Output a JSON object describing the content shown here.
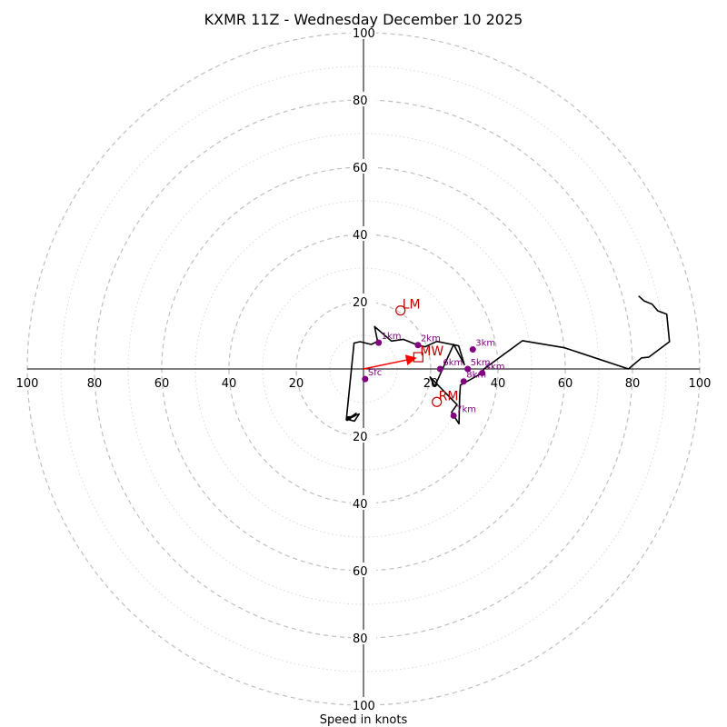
{
  "chart_data": {
    "type": "hodograph",
    "title": "KXMR 11Z - Wednesday December 10 2025",
    "xlabel": "Speed in knots",
    "max_speed": 100,
    "ring_step": 10,
    "ring_labels": [
      20,
      40,
      60,
      80,
      100
    ],
    "colors": {
      "ring_major": "#bfbfbf",
      "ring_minor": "#d9d9d9",
      "axis": "#000000",
      "trace": "#000000",
      "height_marker": "#800080",
      "motion": "#c00000",
      "mean_wind_vector": "#ff0000"
    },
    "trace": [
      [
        81.8,
        21.7
      ],
      [
        83.5,
        20.2
      ],
      [
        85.8,
        19.3
      ],
      [
        87.5,
        17.3
      ],
      [
        90.2,
        16.3
      ],
      [
        91.0,
        8.1
      ],
      [
        84.8,
        3.5
      ],
      [
        82.7,
        3.3
      ],
      [
        78.8,
        0.0
      ],
      [
        59.8,
        6.3
      ],
      [
        47.3,
        8.4
      ],
      [
        35.8,
        0.0
      ],
      [
        35.3,
        -1.2
      ],
      [
        28.8,
        -4.8
      ],
      [
        28.6,
        -8.3
      ],
      [
        28.4,
        -16.3
      ],
      [
        26.2,
        -12.9
      ],
      [
        27.8,
        -10.6
      ],
      [
        19.8,
        -2.4
      ],
      [
        21.2,
        -5.2
      ],
      [
        26.8,
        7.3
      ],
      [
        30.0,
        1.3
      ],
      [
        28.3,
        6.9
      ],
      [
        21.8,
        8.2
      ],
      [
        18.3,
        6.6
      ],
      [
        16.2,
        7.1
      ],
      [
        11.8,
        8.8
      ],
      [
        8.3,
        8.3
      ],
      [
        3.3,
        12.6
      ],
      [
        4.2,
        8.2
      ],
      [
        2.3,
        7.3
      ],
      [
        -1.0,
        8.1
      ],
      [
        -2.8,
        7.7
      ],
      [
        -5.1,
        -15.1
      ],
      [
        -5.1,
        -15.1
      ],
      [
        -5.1,
        -15.1
      ],
      [
        -4.8,
        -15.3
      ],
      [
        -2.2,
        -13.2
      ],
      [
        -4.8,
        -15.0
      ],
      [
        -2.7,
        -15.5
      ],
      [
        -1.3,
        -13.4
      ],
      [
        -3.7,
        -14.2
      ],
      [
        -4.9,
        -14.3
      ],
      [
        -5.0,
        -14.2
      ],
      [
        -3.9,
        -14.9
      ],
      [
        -4.9,
        -15.0
      ],
      [
        -2.4,
        -13.9
      ],
      [
        -4.8,
        -15.0
      ],
      [
        -4.9,
        -15.1
      ],
      [
        -4.8,
        -14.9
      ],
      [
        -5.0,
        -14.8
      ],
      [
        -4.3,
        -14.6
      ],
      [
        -4.9,
        -14.9
      ],
      [
        -4.7,
        -15.0
      ],
      [
        -4.9,
        -15.1
      ],
      [
        -5.0,
        -15.1
      ],
      [
        -4.9,
        -14.9
      ],
      [
        -4.9,
        -15.0
      ],
      [
        -5.0,
        -15.0
      ],
      [
        -5.0,
        -15.0
      ],
      [
        -5.0,
        -15.0
      ],
      [
        -5.0,
        -15.1
      ],
      [
        -5.0,
        -15.1
      ],
      [
        -5.0,
        -15.1
      ],
      [
        -5.0,
        -15.0
      ],
      [
        -5.0,
        -15.0
      ],
      [
        -5.0,
        -15.0
      ],
      [
        -5.0,
        -15.0
      ],
      [
        -5.0,
        -15.0
      ],
      [
        -5.0,
        -15.0
      ],
      [
        -5.1,
        -14.9
      ],
      [
        -5.1,
        -14.9
      ],
      [
        -5.1,
        -14.9
      ],
      [
        -5.1,
        -14.9
      ],
      [
        -5.1,
        -15.0
      ],
      [
        -5.1,
        -15.0
      ],
      [
        -5.1,
        -15.0
      ],
      [
        -5.1,
        -15.0
      ],
      [
        -5.1,
        -15.0
      ],
      [
        -5.1,
        -15.0
      ],
      [
        -5.1,
        -15.0
      ],
      [
        -5.1,
        -15.0
      ],
      [
        -5.1,
        -15.0
      ],
      [
        -5.1,
        -15.0
      ],
      [
        -5.1,
        -15.0
      ],
      [
        -5.1,
        -15.0
      ],
      [
        -5.1,
        -15.0
      ],
      [
        -5.1,
        -15.0
      ],
      [
        -5.1,
        -15.0
      ],
      [
        -5.1,
        -15.0
      ],
      [
        -5.1,
        -15.0
      ],
      [
        -5.1,
        -15.0
      ],
      [
        -5.1,
        -15.0
      ],
      [
        -5.1,
        -15.0
      ],
      [
        -5.1,
        -15.0
      ],
      [
        -5.1,
        -15.0
      ],
      [
        -5.1,
        -15.0
      ],
      [
        -5.1,
        -15.0
      ],
      [
        -5.1,
        -15.0
      ],
      [
        -5.1,
        -15.0
      ],
      [
        -5.1,
        -15.0
      ],
      [
        -5.1,
        -15.0
      ],
      [
        -5.1,
        -15.0
      ],
      [
        -5.1,
        -15.0
      ],
      [
        -5.1,
        -15.0
      ],
      [
        -5.1,
        -15.0
      ],
      [
        -5.1,
        -15.0
      ],
      [
        -5.1,
        -15.0
      ],
      [
        -5.1,
        -15.0
      ],
      [
        -5.1,
        -15.0
      ],
      [
        -5.1,
        -15.0
      ],
      [
        -5.1,
        -15.0
      ],
      [
        -5.1,
        -15.0
      ],
      [
        -5.1,
        -15.0
      ],
      [
        -5.1,
        -15.0
      ],
      [
        -5.1,
        -15.0
      ],
      [
        -5.1,
        -15.0
      ],
      [
        -5.1,
        -15.0
      ],
      [
        -5.1,
        -15.0
      ],
      [
        -5.1,
        -15.0
      ],
      [
        -5.1,
        -15.0
      ],
      [
        -5.1,
        -15.0
      ],
      [
        -5.1,
        -15.0
      ],
      [
        -5.1,
        -15.0
      ],
      [
        -5.1,
        -15.0
      ],
      [
        -5.1,
        -15.0
      ],
      [
        -5.1,
        -15.0
      ],
      [
        -5.1,
        -15.0
      ],
      [
        -5.1,
        -15.0
      ],
      [
        -5.1,
        -15.0
      ],
      [
        -5.1,
        -15.0
      ],
      [
        -5.1,
        -15.0
      ],
      [
        -5.1,
        -15.0
      ],
      [
        -5.1,
        -15.0
      ],
      [
        -5.1,
        -15.0
      ],
      [
        -5.1,
        -15.0
      ],
      [
        -5.1,
        -15.0
      ],
      [
        -5.1,
        -15.0
      ],
      [
        -5.1,
        -15.0
      ],
      [
        -5.1,
        -15.0
      ],
      [
        -5.1,
        -15.0
      ],
      [
        -5.1,
        -15.0
      ],
      [
        -5.1,
        -15.0
      ],
      [
        -5.1,
        -15.0
      ],
      [
        -5.1,
        -15.0
      ],
      [
        -5.1,
        -15.0
      ],
      [
        -5.1,
        -15.0
      ],
      [
        -5.1,
        -15.0
      ],
      [
        -5.1,
        -15.0
      ],
      [
        -5.1,
        -15.0
      ],
      [
        -5.1,
        -15.0
      ],
      [
        -5.1,
        -15.0
      ],
      [
        -5.1,
        -15.0
      ],
      [
        -5.1,
        -15.0
      ],
      [
        -5.1,
        -15.0
      ],
      [
        -5.1,
        -15.0
      ],
      [
        -5.1,
        -15.0
      ],
      [
        -5.1,
        -15.0
      ],
      [
        -5.1,
        -15.0
      ],
      [
        -5.1,
        -15.0
      ],
      [
        -5.1,
        -15.0
      ],
      [
        -5.1,
        -15.0
      ],
      [
        -5.1,
        -15.0
      ],
      [
        -5.1,
        -15.0
      ],
      [
        -5.1,
        -15.0
      ],
      [
        -5.1,
        -15.0
      ],
      [
        -5.1,
        -15.0
      ],
      [
        -5.1,
        -15.0
      ],
      [
        -5.1,
        -15.0
      ],
      [
        -5.1,
        -15.0
      ],
      [
        -5.1,
        -15.0
      ],
      [
        -5.1,
        -15.0
      ],
      [
        -5.1,
        -15.0
      ],
      [
        -5.1,
        -15.0
      ],
      [
        -5.1,
        -15.0
      ],
      [
        -5.1,
        -15.0
      ],
      [
        -5.1,
        -15.0
      ],
      [
        -5.1,
        -15.0
      ],
      [
        -5.1,
        -15.0
      ],
      [
        -5.1,
        -15.0
      ],
      [
        -5.1,
        -15.0
      ],
      [
        -5.1,
        -15.0
      ],
      [
        -5.1,
        -15.0
      ],
      [
        -5.1,
        -15.0
      ],
      [
        -5.1,
        -15.0
      ],
      [
        -5.1,
        -15.0
      ],
      [
        -5.1,
        -15.0
      ],
      [
        -5.1,
        -15.0
      ],
      [
        -5.1,
        -15.0
      ],
      [
        -5.1,
        -15.0
      ],
      [
        -5.1,
        -15.0
      ],
      [
        -5.1,
        -15.0
      ],
      [
        -5.1,
        -15.0
      ],
      [
        -5.1,
        -15.0
      ],
      [
        -5.1,
        -15.0
      ],
      [
        -5.1,
        -15.0
      ],
      [
        -5.1,
        -15.0
      ],
      [
        -5.1,
        -15.0
      ],
      [
        -5.1,
        -15.0
      ],
      [
        -5.1,
        -15.0
      ],
      [
        -5.1,
        -15.0
      ],
      [
        -5.1,
        -15.0
      ],
      [
        -5.1,
        -15.0
      ],
      [
        -5.1,
        -15.0
      ],
      [
        -5.1,
        -15.0
      ],
      [
        -5.1,
        -15.0
      ],
      [
        -5.1,
        -15.0
      ],
      [
        -5.1,
        -15.0
      ],
      [
        -5.1,
        -15.0
      ],
      [
        -5.1,
        -15.0
      ],
      [
        -5.1,
        -15.0
      ],
      [
        -5.1,
        -15.0
      ],
      [
        -5.1,
        -15.0
      ],
      [
        -5.1,
        -15.0
      ],
      [
        -5.1,
        -15.0
      ],
      [
        -5.1,
        -15.0
      ],
      [
        -5.1,
        -15.0
      ],
      [
        -5.1,
        -15.0
      ],
      [
        -5.1,
        -15.0
      ],
      [
        -5.1,
        -15.0
      ],
      [
        -5.1,
        -15.0
      ],
      [
        -5.1,
        -15.0
      ],
      [
        -5.1,
        -15.0
      ],
      [
        -5.1,
        -15.0
      ],
      [
        -5.1,
        -15.0
      ],
      [
        -5.1,
        -15.0
      ],
      [
        -5.1,
        -15.0
      ],
      [
        -5.1,
        -15.0
      ],
      [
        -5.1,
        -15.0
      ],
      [
        -5.1,
        -15.0
      ],
      [
        -5.1,
        -15.0
      ],
      [
        -5.1,
        -15.0
      ],
      [
        -5.1,
        -15.0
      ],
      [
        -5.1,
        -15.0
      ],
      [
        -5.1,
        -15.0
      ]
    ],
    "height_markers": [
      {
        "label": "Sfc",
        "u": 0.5,
        "v": -3.0
      },
      {
        "label": "1km",
        "u": 4.5,
        "v": 7.8
      },
      {
        "label": "2km",
        "u": 16.2,
        "v": 7.1
      },
      {
        "label": "3km",
        "u": 32.5,
        "v": 5.8
      },
      {
        "label": "4km",
        "u": 35.3,
        "v": -1.2
      },
      {
        "label": "5km",
        "u": 31.0,
        "v": 0.0
      },
      {
        "label": "6km",
        "u": 22.8,
        "v": 0.0
      },
      {
        "label": "7km",
        "u": 26.8,
        "v": -13.9
      },
      {
        "label": "8km",
        "u": 29.8,
        "v": -3.7
      }
    ],
    "storm_motions": [
      {
        "label": "LM",
        "u": 11.0,
        "v": 17.4,
        "marker": "circle"
      },
      {
        "label": "RM",
        "u": 21.8,
        "v": -9.8,
        "marker": "circle"
      },
      {
        "label": "MW",
        "u": 16.3,
        "v": 3.5,
        "marker": "square"
      }
    ]
  }
}
